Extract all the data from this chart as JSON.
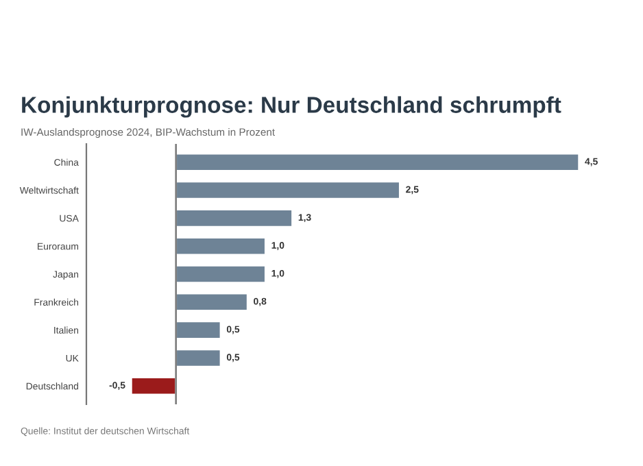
{
  "chart_data": {
    "type": "bar",
    "orientation": "horizontal",
    "title": "Konjunkturprognose: Nur Deutschland schrumpft",
    "subtitle": "IW-Auslandsprognose 2024, BIP-Wachstum in Prozent",
    "categories": [
      "China",
      "Weltwirtschaft",
      "USA",
      "Euroraum",
      "Japan",
      "Frankreich",
      "Italien",
      "UK",
      "Deutschland"
    ],
    "values": [
      4.5,
      2.5,
      1.3,
      1.0,
      1.0,
      0.8,
      0.5,
      0.5,
      -0.5
    ],
    "value_labels": [
      "4,5",
      "2,5",
      "1,3",
      "1,0",
      "1,0",
      "0,8",
      "0,5",
      "0,5",
      "-0,5"
    ],
    "colors": [
      "#6e8396",
      "#6e8396",
      "#6e8396",
      "#6e8396",
      "#6e8396",
      "#6e8396",
      "#6e8396",
      "#6e8396",
      "#9b1b1b"
    ],
    "grid": false,
    "legend": false,
    "annotations": [
      "Quelle: Institut der deutschen Wirtschaft"
    ]
  }
}
